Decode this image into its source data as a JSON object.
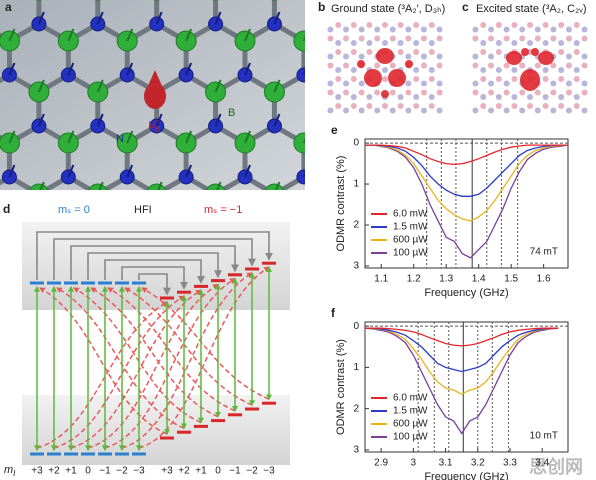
{
  "panels": {
    "a": {
      "label": "a",
      "n_atom": "N",
      "b_atom": "B",
      "vacancy": {
        "base": "V",
        "sub": "B",
        "sup": "−"
      }
    },
    "b": {
      "label": "b",
      "title": "Ground state (³A₂′, D₃ₕ)"
    },
    "c": {
      "label": "c",
      "title": "Excited state (³A₂, C₂ᵥ)"
    },
    "d": {
      "label": "d",
      "ms0": "mₛ = 0",
      "hfi": "HFI",
      "ms1": "mₛ = −1",
      "mi": {
        "base": "m",
        "sub": "I"
      },
      "levels_ms0": [
        "+3",
        "+2",
        "+1",
        "0",
        "−1",
        "−2",
        "−3"
      ],
      "levels_ms1": [
        "+3",
        "+2",
        "+1",
        "0",
        "−1",
        "−2",
        "−3"
      ]
    }
  },
  "chart_data": [
    {
      "type": "line",
      "label": "e",
      "annotation": "74 mT",
      "xlabel": "Frequency (GHz)",
      "ylabel": "ODMR contrast (%)",
      "x": [
        1.05,
        1.075,
        1.1,
        1.125,
        1.15,
        1.175,
        1.2,
        1.225,
        1.25,
        1.275,
        1.3,
        1.325,
        1.35,
        1.375,
        1.4,
        1.425,
        1.45,
        1.475,
        1.5,
        1.525,
        1.55,
        1.575,
        1.6,
        1.625,
        1.65,
        1.675
      ],
      "xlim": [
        1.05,
        1.675
      ],
      "xticks": [
        1.1,
        1.2,
        1.3,
        1.4,
        1.5,
        1.6
      ],
      "ylim": [
        3.05,
        -0.1
      ],
      "yticks": [
        0,
        1,
        2,
        3
      ],
      "dashed_lines": [
        1.24,
        1.285,
        1.33,
        1.425,
        1.47,
        1.52
      ],
      "center_line": 1.38,
      "series": [
        {
          "name": "6.0 mW",
          "color": "#e3262b",
          "values": [
            0.05,
            0.05,
            0.05,
            0.06,
            0.08,
            0.12,
            0.2,
            0.28,
            0.38,
            0.45,
            0.5,
            0.52,
            0.5,
            0.45,
            0.38,
            0.3,
            0.22,
            0.15,
            0.1,
            0.07,
            0.05,
            0.05,
            0.05,
            0.05,
            0.05,
            0.05
          ]
        },
        {
          "name": "1.5 mW",
          "color": "#2b3bc9",
          "values": [
            0.05,
            0.05,
            0.06,
            0.08,
            0.12,
            0.2,
            0.35,
            0.55,
            0.8,
            1.0,
            1.15,
            1.25,
            1.3,
            1.3,
            1.25,
            1.1,
            0.9,
            0.7,
            0.5,
            0.3,
            0.18,
            0.12,
            0.08,
            0.06,
            0.05,
            0.05
          ]
        },
        {
          "name": "600 µW",
          "color": "#e6b41e",
          "values": [
            0.05,
            0.05,
            0.07,
            0.1,
            0.17,
            0.3,
            0.5,
            0.8,
            1.1,
            1.4,
            1.6,
            1.75,
            1.85,
            1.9,
            1.8,
            1.65,
            1.4,
            1.1,
            0.8,
            0.5,
            0.3,
            0.18,
            0.12,
            0.08,
            0.06,
            0.05
          ]
        },
        {
          "name": "100 µW",
          "color": "#7a3f9e",
          "values": [
            0.05,
            0.05,
            0.08,
            0.12,
            0.2,
            0.35,
            0.6,
            1.0,
            1.5,
            1.9,
            2.3,
            2.4,
            2.7,
            2.8,
            2.6,
            2.4,
            2.0,
            1.6,
            1.1,
            0.7,
            0.4,
            0.25,
            0.15,
            0.1,
            0.08,
            0.05
          ]
        }
      ]
    },
    {
      "type": "line",
      "label": "f",
      "annotation": "10 mT",
      "xlabel": "Frequency (GHz)",
      "ylabel": "ODMR contrast (%)",
      "x": [
        2.85,
        2.875,
        2.9,
        2.925,
        2.95,
        2.975,
        3.0,
        3.025,
        3.05,
        3.075,
        3.1,
        3.125,
        3.15,
        3.175,
        3.2,
        3.225,
        3.25,
        3.275,
        3.3,
        3.325,
        3.35,
        3.375,
        3.4,
        3.425,
        3.45
      ],
      "xlim": [
        2.85,
        3.48
      ],
      "xticks": [
        2.9,
        3.0,
        3.1,
        3.2,
        3.3,
        3.4
      ],
      "ylim": [
        3.05,
        -0.1
      ],
      "yticks": [
        0,
        1,
        2,
        3
      ],
      "dashed_lines": [
        3.015,
        3.065,
        3.11,
        3.2,
        3.245,
        3.295
      ],
      "center_line": 3.155,
      "series": [
        {
          "name": "6.0 mW",
          "color": "#e3262b",
          "values": [
            0.05,
            0.05,
            0.05,
            0.06,
            0.08,
            0.1,
            0.14,
            0.2,
            0.28,
            0.35,
            0.42,
            0.46,
            0.48,
            0.46,
            0.42,
            0.35,
            0.28,
            0.2,
            0.14,
            0.1,
            0.08,
            0.06,
            0.05,
            0.05,
            0.05
          ]
        },
        {
          "name": "1.5 mW",
          "color": "#2b3bc9",
          "values": [
            0.05,
            0.05,
            0.07,
            0.1,
            0.15,
            0.22,
            0.35,
            0.5,
            0.7,
            0.9,
            1.0,
            1.05,
            1.1,
            1.05,
            1.0,
            0.9,
            0.7,
            0.5,
            0.35,
            0.22,
            0.15,
            0.1,
            0.07,
            0.05,
            0.05
          ]
        },
        {
          "name": "600 µW",
          "color": "#e6b41e",
          "values": [
            0.05,
            0.06,
            0.08,
            0.12,
            0.2,
            0.32,
            0.55,
            0.8,
            1.1,
            1.35,
            1.5,
            1.55,
            1.65,
            1.55,
            1.5,
            1.35,
            1.1,
            0.8,
            0.55,
            0.32,
            0.2,
            0.12,
            0.08,
            0.06,
            0.05
          ]
        },
        {
          "name": "100 µW",
          "color": "#7a3f9e",
          "values": [
            0.05,
            0.07,
            0.1,
            0.15,
            0.25,
            0.4,
            0.7,
            1.1,
            1.5,
            1.9,
            2.2,
            2.3,
            2.6,
            2.3,
            2.2,
            1.9,
            1.5,
            1.1,
            0.7,
            0.4,
            0.25,
            0.15,
            0.1,
            0.07,
            0.05
          ]
        }
      ]
    }
  ],
  "watermark": "思创网"
}
